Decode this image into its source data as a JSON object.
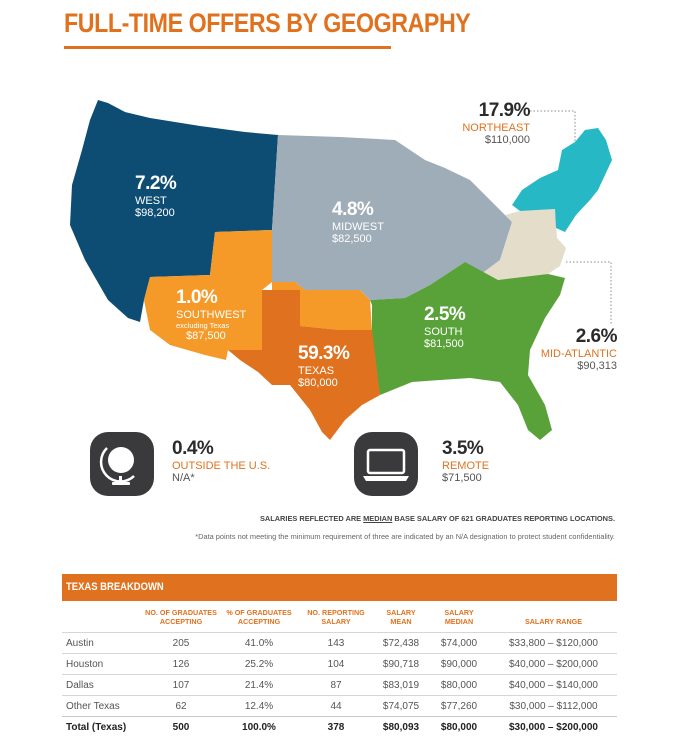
{
  "title": "FULL-TIME OFFERS BY GEOGRAPHY",
  "colors": {
    "west": "#0e4d73",
    "midwest": "#9eadb8",
    "northeast": "#26b9c5",
    "mid_atlantic": "#e4ddca",
    "south": "#59a23a",
    "southwest": "#f59a28",
    "texas": "#e0721f",
    "accent": "#e0721f"
  },
  "regions": {
    "west": {
      "pct": "7.2%",
      "name": "WEST",
      "salary": "$98,200"
    },
    "midwest": {
      "pct": "4.8%",
      "name": "MIDWEST",
      "salary": "$82,500"
    },
    "northeast": {
      "pct": "17.9%",
      "name": "NORTHEAST",
      "salary": "$110,000"
    },
    "southwest": {
      "pct": "1.0%",
      "name": "SOUTHWEST",
      "note": "excluding Texas",
      "salary": "$87,500"
    },
    "texas": {
      "pct": "59.3%",
      "name": "TEXAS",
      "salary": "$80,000"
    },
    "south": {
      "pct": "2.5%",
      "name": "SOUTH",
      "salary": "$81,500"
    },
    "mid_atlantic": {
      "pct": "2.6%",
      "name": "MID-ATLANTIC",
      "salary": "$90,313"
    }
  },
  "extras": {
    "outside": {
      "pct": "0.4%",
      "name": "OUTSIDE THE U.S.",
      "salary": "N/A*",
      "icon": "globe-icon"
    },
    "remote": {
      "pct": "3.5%",
      "name": "REMOTE",
      "salary": "$71,500",
      "icon": "laptop-icon"
    }
  },
  "notes": {
    "salary_prefix": "SALARIES REFLECTED ARE ",
    "salary_median": "MEDIAN",
    "salary_suffix": " BASE SALARY OF 621 GRADUATES REPORTING LOCATIONS.",
    "footnote": "*Data points not meeting the minimum requirement of three are indicated by an N/A designation to protect student confidentiality."
  },
  "texas_breakdown": {
    "title": "TEXAS BREAKDOWN",
    "headers": [
      "",
      "NO. OF GRADUATES ACCEPTING",
      "% OF GRADUATES ACCEPTING",
      "NO. REPORTING SALARY",
      "SALARY MEAN",
      "SALARY MEDIAN",
      "SALARY RANGE"
    ],
    "rows": [
      [
        "Austin",
        "205",
        "41.0%",
        "143",
        "$72,438",
        "$74,000",
        "$33,800 – $120,000"
      ],
      [
        "Houston",
        "126",
        "25.2%",
        "104",
        "$90,718",
        "$90,000",
        "$40,000 – $200,000"
      ],
      [
        "Dallas",
        "107",
        "21.4%",
        "87",
        "$83,019",
        "$80,000",
        "$40,000 – $140,000"
      ],
      [
        "Other Texas",
        "62",
        "12.4%",
        "44",
        "$74,075",
        "$77,260",
        "$30,000 – $112,000"
      ]
    ],
    "total": [
      "Total (Texas)",
      "500",
      "100.0%",
      "378",
      "$80,093",
      "$80,000",
      "$30,000 – $200,000"
    ]
  }
}
